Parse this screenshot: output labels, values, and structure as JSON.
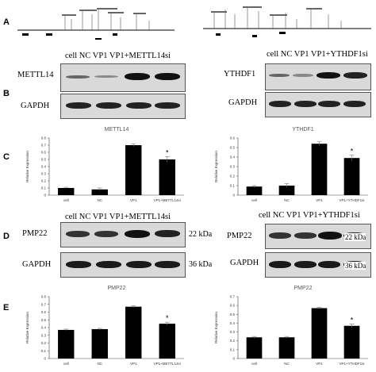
{
  "panels": {
    "A": "A",
    "B": "B",
    "C": "C",
    "D": "D",
    "E": "E"
  },
  "left": {
    "lane_header": "cell   NC  VP1   VP1+METTL14si",
    "blot_B_label": "METTL14",
    "blot_B_loading": "GAPDH",
    "blot_D_label": "PMP22",
    "blot_D_loading": "GAPDH",
    "kda_target": "22 kDa",
    "kda_loading": "36 kDa"
  },
  "right": {
    "lane_header": "cell   NC  VP1   VP1+YTHDF1si",
    "blot_B_label": "YTHDF1",
    "blot_B_loading": "GAPDH",
    "blot_D_label": "PMP22",
    "blot_D_loading": "GAPDH",
    "kda_target": "22 kDa",
    "kda_loading": "36 kDa"
  },
  "chart_data": [
    {
      "id": "C-left",
      "type": "bar",
      "title": "METTL14",
      "categories": [
        "cell",
        "NC",
        "VP1",
        "VP1+METTL14si"
      ],
      "values": [
        0.1,
        0.08,
        0.7,
        0.5
      ],
      "errors": [
        0.01,
        0.02,
        0.02,
        0.04
      ],
      "ylabel": "Relative Expression",
      "ylim": [
        0,
        0.8
      ],
      "yticks": [
        0,
        0.1,
        0.2,
        0.3,
        0.4,
        0.5,
        0.6,
        0.7,
        0.8
      ],
      "significance": [
        null,
        null,
        null,
        "*"
      ],
      "bar_color": "#000000"
    },
    {
      "id": "C-right",
      "type": "bar",
      "title": "YTHDF1",
      "categories": [
        "cell",
        "NC",
        "VP1",
        "VP1+YTHDF1si"
      ],
      "values": [
        0.09,
        0.1,
        0.54,
        0.39
      ],
      "errors": [
        0.01,
        0.02,
        0.02,
        0.03
      ],
      "ylabel": "Relative Expression",
      "ylim": [
        0,
        0.6
      ],
      "yticks": [
        0,
        0.1,
        0.2,
        0.3,
        0.4,
        0.5,
        0.6
      ],
      "significance": [
        null,
        null,
        null,
        "*"
      ],
      "bar_color": "#000000"
    },
    {
      "id": "E-left",
      "type": "bar",
      "title": "PMP22",
      "categories": [
        "cell",
        "NC",
        "VP1",
        "VP1+METTL14si"
      ],
      "values": [
        0.37,
        0.38,
        0.67,
        0.45
      ],
      "errors": [
        0.01,
        0.01,
        0.01,
        0.02
      ],
      "ylabel": "Relative Expression",
      "ylim": [
        0,
        0.8
      ],
      "yticks": [
        0,
        0.1,
        0.2,
        0.3,
        0.4,
        0.5,
        0.6,
        0.7,
        0.8
      ],
      "significance": [
        null,
        null,
        null,
        "*"
      ],
      "bar_color": "#000000"
    },
    {
      "id": "E-right",
      "type": "bar",
      "title": "PMP22",
      "categories": [
        "cell",
        "NC",
        "VP1",
        "VP1+YTHDF1si"
      ],
      "values": [
        0.24,
        0.24,
        0.57,
        0.37
      ],
      "errors": [
        0.01,
        0.01,
        0.01,
        0.02
      ],
      "ylabel": "Relative Expression",
      "ylim": [
        0,
        0.7
      ],
      "yticks": [
        0,
        0.1,
        0.2,
        0.3,
        0.4,
        0.5,
        0.6,
        0.7
      ],
      "significance": [
        null,
        null,
        null,
        "*"
      ],
      "bar_color": "#000000"
    }
  ]
}
